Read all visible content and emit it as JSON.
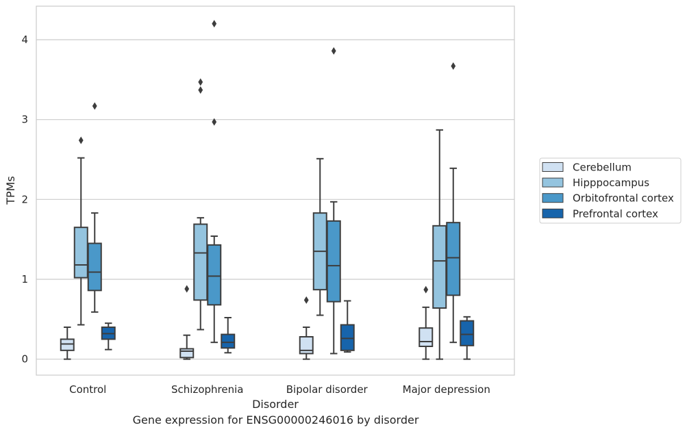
{
  "caption": "Gene expression for ENSG00000246016 by disorder",
  "chart_data": {
    "type": "boxplot",
    "xlabel": "Disorder",
    "ylabel": "TPMs",
    "ylim": [
      -0.2,
      4.42
    ],
    "yticks": [
      0,
      1,
      2,
      3,
      4
    ],
    "grid": "horizontal",
    "legend_position": "right",
    "categories": [
      "Control",
      "Schizophrenia",
      "Bipolar disorder",
      "Major depression"
    ],
    "series": [
      {
        "name": "Cerebellum",
        "color": "#d0e1f2",
        "boxes": [
          {
            "whislo": 0.0,
            "q1": 0.11,
            "med": 0.19,
            "q3": 0.25,
            "whishi": 0.4,
            "fliers": []
          },
          {
            "whislo": 0.0,
            "q1": 0.02,
            "med": 0.1,
            "q3": 0.13,
            "whishi": 0.3,
            "fliers": [
              0.88
            ]
          },
          {
            "whislo": 0.0,
            "q1": 0.07,
            "med": 0.11,
            "q3": 0.28,
            "whishi": 0.4,
            "fliers": [
              0.74
            ]
          },
          {
            "whislo": 0.0,
            "q1": 0.16,
            "med": 0.22,
            "q3": 0.39,
            "whishi": 0.65,
            "fliers": [
              0.87
            ]
          }
        ]
      },
      {
        "name": "Hipppocampus",
        "color": "#94c4df",
        "boxes": [
          {
            "whislo": 0.43,
            "q1": 1.02,
            "med": 1.18,
            "q3": 1.65,
            "whishi": 2.52,
            "fliers": [
              2.74
            ]
          },
          {
            "whislo": 0.37,
            "q1": 0.74,
            "med": 1.33,
            "q3": 1.69,
            "whishi": 1.77,
            "fliers": [
              3.37,
              3.47
            ]
          },
          {
            "whislo": 0.55,
            "q1": 0.87,
            "med": 1.35,
            "q3": 1.83,
            "whishi": 2.51,
            "fliers": []
          },
          {
            "whislo": 0.0,
            "q1": 0.64,
            "med": 1.23,
            "q3": 1.67,
            "whishi": 2.87,
            "fliers": []
          }
        ]
      },
      {
        "name": "Orbitofrontal cortex",
        "color": "#4a98c9",
        "boxes": [
          {
            "whislo": 0.59,
            "q1": 0.86,
            "med": 1.09,
            "q3": 1.45,
            "whishi": 1.83,
            "fliers": [
              3.17
            ]
          },
          {
            "whislo": 0.21,
            "q1": 0.68,
            "med": 1.04,
            "q3": 1.43,
            "whishi": 1.54,
            "fliers": [
              2.97,
              4.2
            ]
          },
          {
            "whislo": 0.07,
            "q1": 0.72,
            "med": 1.17,
            "q3": 1.73,
            "whishi": 1.97,
            "fliers": [
              3.86
            ]
          },
          {
            "whislo": 0.21,
            "q1": 0.8,
            "med": 1.27,
            "q3": 1.71,
            "whishi": 2.39,
            "fliers": [
              3.67
            ]
          }
        ]
      },
      {
        "name": "Prefrontal cortex",
        "color": "#1764ab",
        "boxes": [
          {
            "whislo": 0.12,
            "q1": 0.25,
            "med": 0.32,
            "q3": 0.4,
            "whishi": 0.45,
            "fliers": []
          },
          {
            "whislo": 0.08,
            "q1": 0.14,
            "med": 0.21,
            "q3": 0.31,
            "whishi": 0.52,
            "fliers": []
          },
          {
            "whislo": 0.09,
            "q1": 0.11,
            "med": 0.26,
            "q3": 0.43,
            "whishi": 0.73,
            "fliers": []
          },
          {
            "whislo": 0.0,
            "q1": 0.17,
            "med": 0.31,
            "q3": 0.48,
            "whishi": 0.53,
            "fliers": []
          }
        ]
      }
    ]
  }
}
